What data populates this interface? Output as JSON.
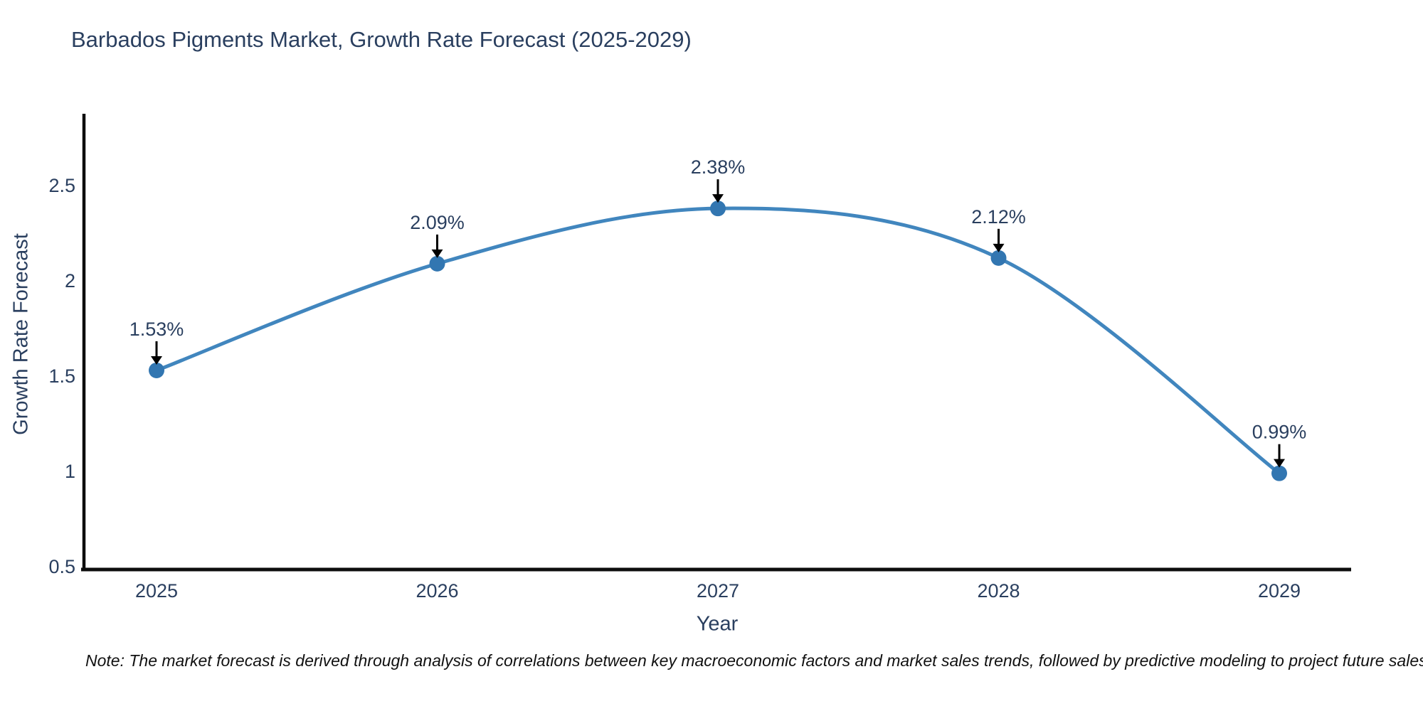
{
  "note": "Note: The market forecast is derived through analysis of correlations between key macroeconomic factors and market sales trends, followed by predictive modeling to project future sales",
  "chart_data": {
    "type": "line",
    "title": "Barbados Pigments Market, Growth Rate Forecast (2025-2029)",
    "xlabel": "Year",
    "ylabel": "Growth Rate Forecast",
    "categories": [
      "2025",
      "2026",
      "2027",
      "2028",
      "2029"
    ],
    "series": [
      {
        "name": "Growth Rate Forecast",
        "values": [
          1.53,
          2.09,
          2.38,
          2.12,
          0.99
        ],
        "point_labels": [
          "1.53%",
          "2.09%",
          "2.38%",
          "2.12%",
          "0.99%"
        ]
      }
    ],
    "y_ticks": [
      0.5,
      1,
      1.5,
      2,
      2.5
    ],
    "ylim": [
      0.5,
      2.9
    ],
    "grid": false,
    "legend_position": "none",
    "line_shape": "spline",
    "colors": {
      "line": "#4186be",
      "marker": "#3276b1",
      "axis": "#0d0d0d",
      "annotation_text": "#2a3f5f",
      "annotation_arrow": "#000000",
      "title": "#2a3f5f"
    }
  }
}
